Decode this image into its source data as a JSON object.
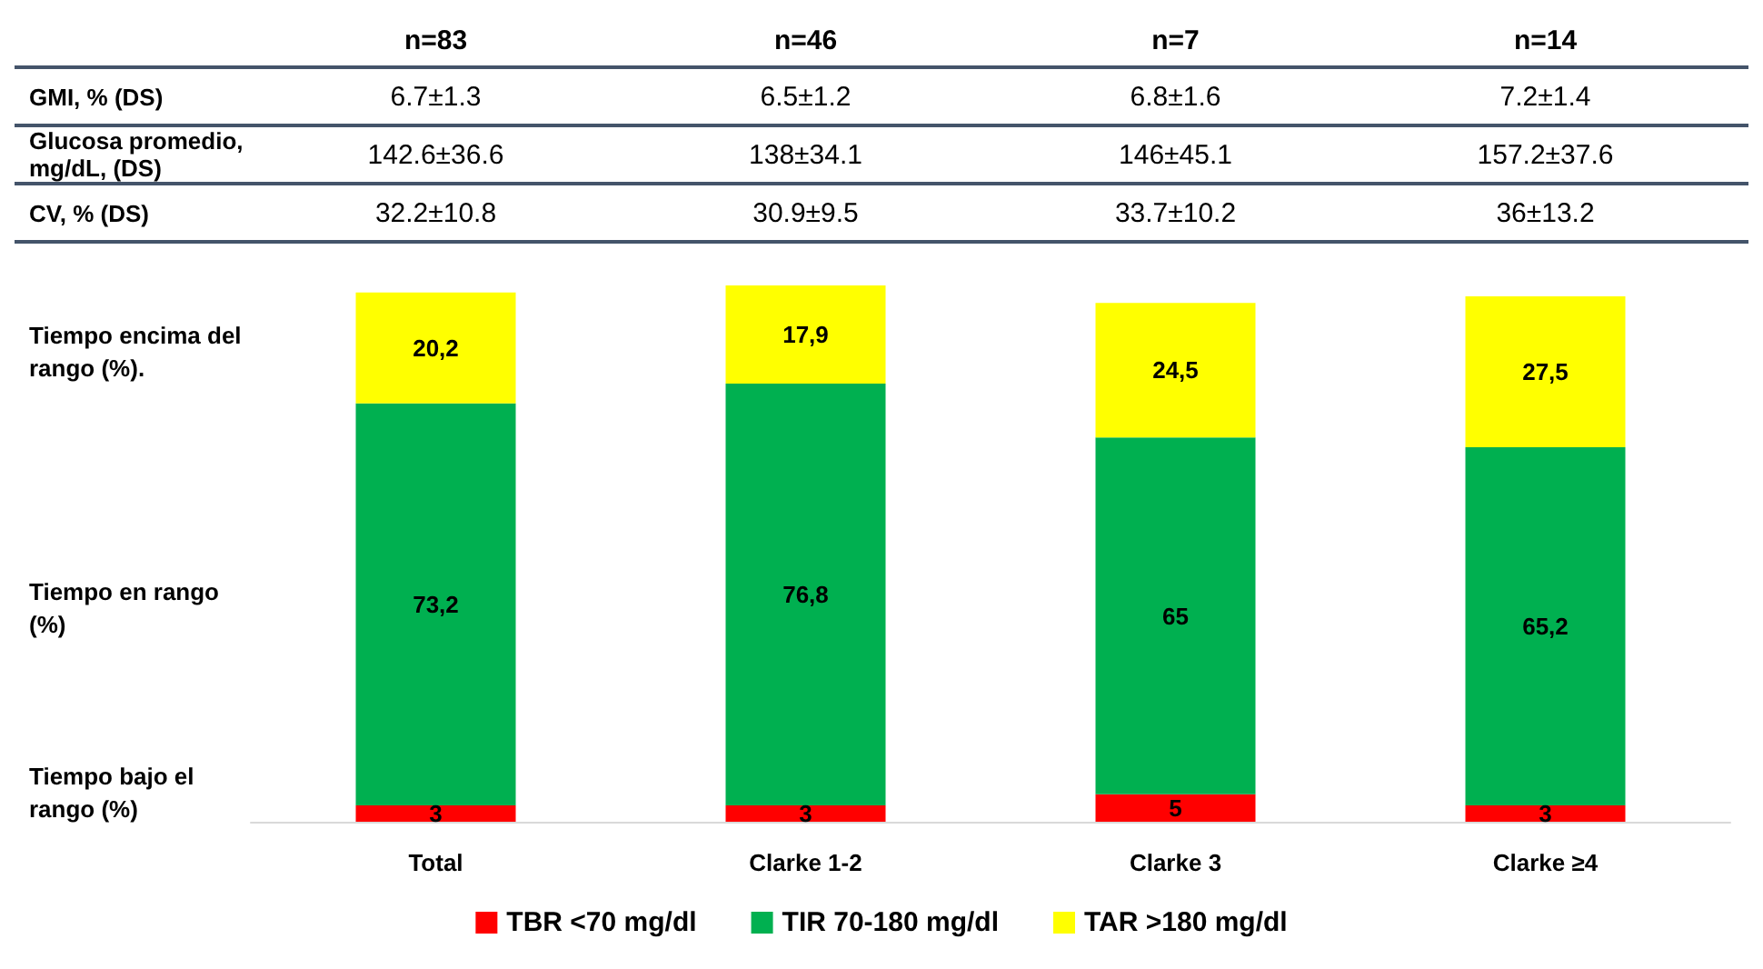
{
  "chart_data": {
    "type": "bar",
    "stacked": true,
    "categories": [
      "Total",
      "Clarke 1-2",
      "Clarke 3",
      "Clarke ≥4"
    ],
    "series": [
      {
        "name": "TBR <70 mg/dl",
        "color": "#ff0000",
        "values": [
          3,
          3,
          5,
          3
        ],
        "value_labels": [
          "3",
          "3",
          "5",
          "3"
        ]
      },
      {
        "name": "TIR 70-180 mg/dl",
        "color": "#00b050",
        "values": [
          73.2,
          76.8,
          65,
          65.2
        ],
        "value_labels": [
          "73,2",
          "76,8",
          "65",
          "65,2"
        ]
      },
      {
        "name": "TAR >180 mg/dl",
        "color": "#ffff00",
        "values": [
          20.2,
          17.9,
          24.5,
          27.5
        ],
        "value_labels": [
          "20,2",
          "17,9",
          "24,5",
          "27,5"
        ]
      }
    ],
    "legend": "bottom",
    "grid": false,
    "annotations": [
      "n=83",
      "n=46",
      "n=7",
      "n=14",
      "GMI, % (DS)",
      "6.7±1.3",
      "6.5±1.2",
      "6.8±1.6",
      "7.2±1.4",
      "Glucosa promedio, mg/dL, (DS)",
      "142.6±36.6",
      "138±34.1",
      "146±45.1",
      "157.2±37.6",
      "CV, % (DS)",
      "32.2±10.8",
      "30.9±9.5",
      "33.7±10.2",
      "36±13.2",
      "Tiempo encima del rango (%).",
      "Tiempo en rango (%)",
      "Tiempo bajo el rango (%)"
    ]
  }
}
